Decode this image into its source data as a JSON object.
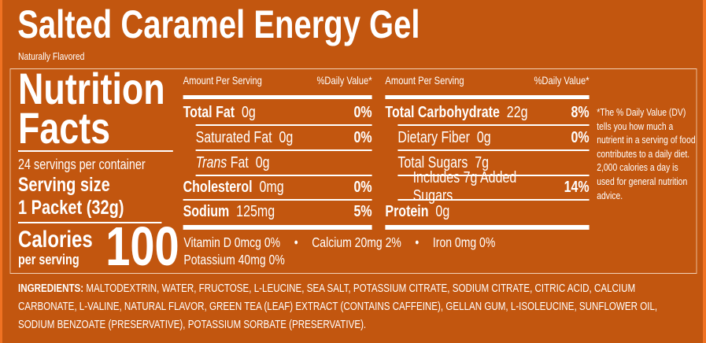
{
  "title": "Salted Caramel Energy Gel",
  "subtitle": "Naturally Flavored",
  "colors": {
    "background": "#c2560f",
    "edge": "#f07222",
    "text": "#ffffff"
  },
  "facts": {
    "heading_line1": "Nutrition",
    "heading_line2": "Facts",
    "servings": "24 servings per container",
    "serving_size_label": "Serving size",
    "serving_size_value": "1 Packet (32g)",
    "calories_label": "Calories",
    "calories_sub": "per serving",
    "calories_value": "100"
  },
  "columns": [
    {
      "header_left": "Amount Per Serving",
      "header_right": "%Daily Value*",
      "rows": [
        {
          "name": "Total Fat",
          "amount": "0g",
          "dv": "0%",
          "bold": true,
          "indent": 0
        },
        {
          "name": "Saturated Fat",
          "amount": "0g",
          "dv": "0%",
          "bold": false,
          "indent": 1
        },
        {
          "name": "Trans",
          "name_rest": " Fat",
          "amount": "0g",
          "dv": "",
          "bold": false,
          "indent": 1,
          "italic": true
        },
        {
          "name": "Cholesterol",
          "amount": "0mg",
          "dv": "0%",
          "bold": true,
          "indent": 0
        },
        {
          "name": "Sodium",
          "amount": "125mg",
          "dv": "5%",
          "bold": true,
          "indent": 0
        }
      ]
    },
    {
      "header_left": "Amount Per Serving",
      "header_right": "%Daily Value*",
      "rows": [
        {
          "name": "Total Carbohydrate",
          "amount": "22g",
          "dv": "8%",
          "bold": true,
          "indent": 0
        },
        {
          "name": "Dietary Fiber",
          "amount": "0g",
          "dv": "0%",
          "bold": false,
          "indent": 1
        },
        {
          "name": "Total Sugars",
          "amount": "7g",
          "dv": "",
          "bold": false,
          "indent": 1
        },
        {
          "name": "Includes 7g Added Sugars",
          "amount": "",
          "dv": "14%",
          "bold": false,
          "indent": 2
        },
        {
          "name": "Protein",
          "amount": "0g",
          "dv": "",
          "bold": true,
          "indent": 0
        }
      ]
    }
  ],
  "micros": {
    "line1": [
      "Vitamin D  0mcg  0%",
      "•",
      "Calcium  20mg 2%",
      "•",
      "Iron  0mg  0%"
    ],
    "line2": "Potassium  40mg  0%"
  },
  "footnote": "*The % Daily Value (DV) tells you how much a nutrient in a serving of food contributes to a daily diet. 2,000 calories a day is used for general nutrition advice.",
  "ingredients": {
    "label": "INGREDIENTS:",
    "text": "MALTODEXTRIN, WATER, FRUCTOSE, L-LEUCINE, SEA SALT, POTASSIUM CITRATE, SODIUM CITRATE, CITRIC ACID, CALCIUM CARBONATE, L-VALINE, NATURAL FLAVOR, GREEN TEA (LEAF) EXTRACT (CONTAINS CAFFEINE), GELLAN GUM, L-ISOLEUCINE, SUNFLOWER OIL, SODIUM BENZOATE (PRESERVATIVE), POTASSIUM SORBATE (PRESERVATIVE)."
  }
}
